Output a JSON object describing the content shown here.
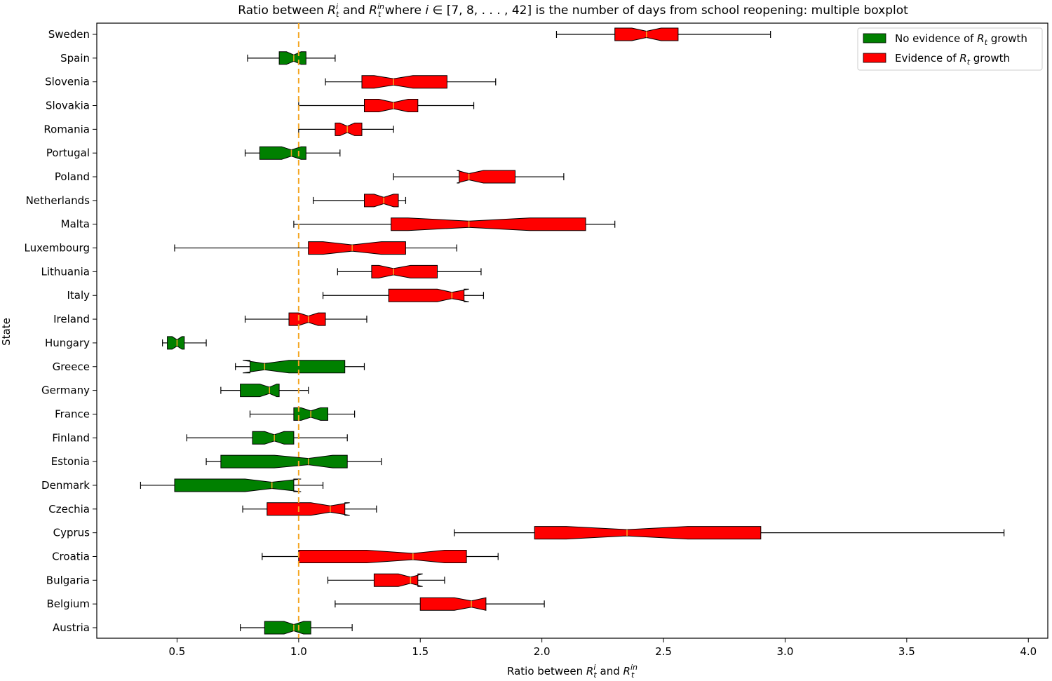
{
  "chart_data": {
    "type": "boxplot",
    "title": "Ratio between R_t^i and R_t^in where i ∈ [7, 8, . . . , 42] is the number of days from school reopening: multiple boxplot",
    "xlabel": "Ratio between R_t^i and R_t^in",
    "ylabel": "State",
    "xlim": [
      0.17,
      4.08
    ],
    "xticks": [
      0.5,
      1.0,
      1.5,
      2.0,
      2.5,
      3.0,
      3.5,
      4.0
    ],
    "xtick_labels": [
      "0.5",
      "1.0",
      "1.5",
      "2.0",
      "2.5",
      "3.0",
      "3.5",
      "4.0"
    ],
    "reference_line": 1.0,
    "reference_color": "#f5a623",
    "legend_position": "top-right",
    "legend": [
      {
        "label": "No evidence of R_t growth",
        "group": "none",
        "color": "#008000"
      },
      {
        "label": "Evidence of R_t growth",
        "group": "growth",
        "color": "#ff0000"
      }
    ],
    "states": [
      {
        "name": "Sweden",
        "group": "growth",
        "whisker_low": 2.06,
        "q1": 2.3,
        "median": 2.43,
        "q3": 2.56,
        "whisker_high": 2.94,
        "notch_low": 2.37,
        "notch_high": 2.49
      },
      {
        "name": "Spain",
        "group": "none",
        "whisker_low": 0.79,
        "q1": 0.92,
        "median": 0.98,
        "q3": 1.03,
        "whisker_high": 1.15,
        "notch_low": 0.95,
        "notch_high": 1.01
      },
      {
        "name": "Slovenia",
        "group": "growth",
        "whisker_low": 1.11,
        "q1": 1.26,
        "median": 1.39,
        "q3": 1.61,
        "whisker_high": 1.81,
        "notch_low": 1.31,
        "notch_high": 1.47
      },
      {
        "name": "Slovakia",
        "group": "growth",
        "whisker_low": 1.0,
        "q1": 1.27,
        "median": 1.39,
        "q3": 1.49,
        "whisker_high": 1.72,
        "notch_low": 1.33,
        "notch_high": 1.45
      },
      {
        "name": "Romania",
        "group": "growth",
        "whisker_low": 1.0,
        "q1": 1.15,
        "median": 1.2,
        "q3": 1.26,
        "whisker_high": 1.39,
        "notch_low": 1.17,
        "notch_high": 1.23
      },
      {
        "name": "Portugal",
        "group": "none",
        "whisker_low": 0.78,
        "q1": 0.84,
        "median": 0.97,
        "q3": 1.03,
        "whisker_high": 1.17,
        "notch_low": 0.93,
        "notch_high": 1.01
      },
      {
        "name": "Poland",
        "group": "growth",
        "whisker_low": 1.39,
        "q1": 1.66,
        "median": 1.7,
        "q3": 1.89,
        "whisker_high": 2.09,
        "notch_low": 1.65,
        "notch_high": 1.76
      },
      {
        "name": "Netherlands",
        "group": "growth",
        "whisker_low": 1.06,
        "q1": 1.27,
        "median": 1.35,
        "q3": 1.41,
        "whisker_high": 1.44,
        "notch_low": 1.31,
        "notch_high": 1.39
      },
      {
        "name": "Malta",
        "group": "growth",
        "whisker_low": 0.98,
        "q1": 1.38,
        "median": 1.7,
        "q3": 2.18,
        "whisker_high": 2.3,
        "notch_low": 1.45,
        "notch_high": 1.95
      },
      {
        "name": "Luxembourg",
        "group": "growth",
        "whisker_low": 0.49,
        "q1": 1.04,
        "median": 1.22,
        "q3": 1.44,
        "whisker_high": 1.65,
        "notch_low": 1.1,
        "notch_high": 1.34
      },
      {
        "name": "Lithuania",
        "group": "growth",
        "whisker_low": 1.16,
        "q1": 1.3,
        "median": 1.39,
        "q3": 1.57,
        "whisker_high": 1.75,
        "notch_low": 1.33,
        "notch_high": 1.46
      },
      {
        "name": "Italy",
        "group": "growth",
        "whisker_low": 1.1,
        "q1": 1.37,
        "median": 1.63,
        "q3": 1.68,
        "whisker_high": 1.76,
        "notch_low": 1.57,
        "notch_high": 1.7
      },
      {
        "name": "Ireland",
        "group": "growth",
        "whisker_low": 0.78,
        "q1": 0.96,
        "median": 1.04,
        "q3": 1.11,
        "whisker_high": 1.28,
        "notch_low": 1.0,
        "notch_high": 1.08
      },
      {
        "name": "Hungary",
        "group": "none",
        "whisker_low": 0.44,
        "q1": 0.46,
        "median": 0.5,
        "q3": 0.53,
        "whisker_high": 0.62,
        "notch_low": 0.48,
        "notch_high": 0.52
      },
      {
        "name": "Greece",
        "group": "none",
        "whisker_low": 0.74,
        "q1": 0.8,
        "median": 0.86,
        "q3": 1.19,
        "whisker_high": 1.27,
        "notch_low": 0.77,
        "notch_high": 0.96
      },
      {
        "name": "Germany",
        "group": "none",
        "whisker_low": 0.68,
        "q1": 0.76,
        "median": 0.88,
        "q3": 0.92,
        "whisker_high": 1.04,
        "notch_low": 0.84,
        "notch_high": 0.91
      },
      {
        "name": "France",
        "group": "none",
        "whisker_low": 0.8,
        "q1": 0.98,
        "median": 1.05,
        "q3": 1.12,
        "whisker_high": 1.23,
        "notch_low": 1.01,
        "notch_high": 1.09
      },
      {
        "name": "Finland",
        "group": "none",
        "whisker_low": 0.54,
        "q1": 0.81,
        "median": 0.9,
        "q3": 0.98,
        "whisker_high": 1.2,
        "notch_low": 0.86,
        "notch_high": 0.94
      },
      {
        "name": "Estonia",
        "group": "none",
        "whisker_low": 0.62,
        "q1": 0.68,
        "median": 1.04,
        "q3": 1.2,
        "whisker_high": 1.34,
        "notch_low": 0.9,
        "notch_high": 1.14
      },
      {
        "name": "Denmark",
        "group": "none",
        "whisker_low": 0.35,
        "q1": 0.49,
        "median": 0.89,
        "q3": 0.98,
        "whisker_high": 1.1,
        "notch_low": 0.78,
        "notch_high": 1.01
      },
      {
        "name": "Czechia",
        "group": "growth",
        "whisker_low": 0.77,
        "q1": 0.87,
        "median": 1.13,
        "q3": 1.19,
        "whisker_high": 1.32,
        "notch_low": 1.05,
        "notch_high": 1.21
      },
      {
        "name": "Cyprus",
        "group": "growth",
        "whisker_low": 1.64,
        "q1": 1.97,
        "median": 2.35,
        "q3": 2.9,
        "whisker_high": 3.9,
        "notch_low": 2.1,
        "notch_high": 2.6
      },
      {
        "name": "Croatia",
        "group": "growth",
        "whisker_low": 0.85,
        "q1": 1.0,
        "median": 1.47,
        "q3": 1.69,
        "whisker_high": 1.82,
        "notch_low": 1.28,
        "notch_high": 1.6
      },
      {
        "name": "Bulgaria",
        "group": "growth",
        "whisker_low": 1.12,
        "q1": 1.31,
        "median": 1.46,
        "q3": 1.49,
        "whisker_high": 1.6,
        "notch_low": 1.41,
        "notch_high": 1.51
      },
      {
        "name": "Belgium",
        "group": "growth",
        "whisker_low": 1.15,
        "q1": 1.5,
        "median": 1.71,
        "q3": 1.77,
        "whisker_high": 2.01,
        "notch_low": 1.64,
        "notch_high": 1.77
      },
      {
        "name": "Austria",
        "group": "none",
        "whisker_low": 0.76,
        "q1": 0.86,
        "median": 0.98,
        "q3": 1.05,
        "whisker_high": 1.22,
        "notch_low": 0.94,
        "notch_high": 1.02
      }
    ]
  }
}
